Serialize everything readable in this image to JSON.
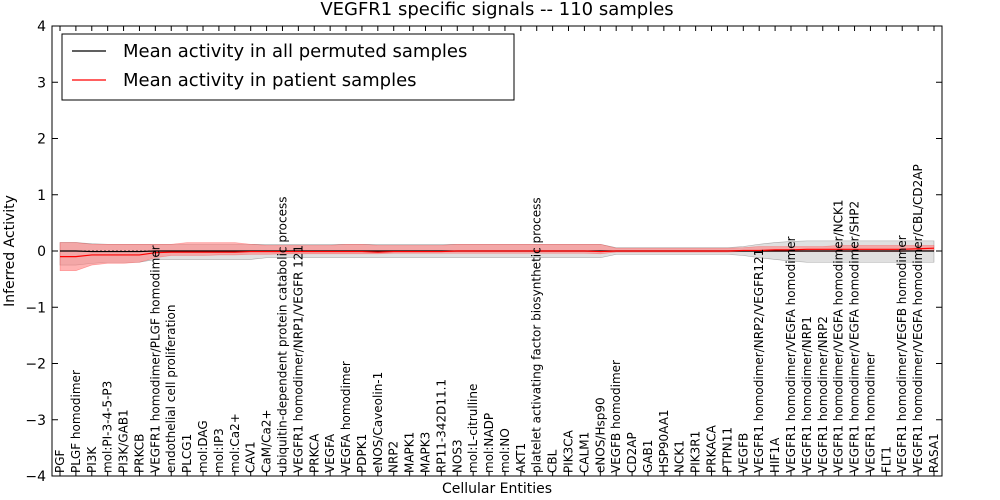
{
  "chart_data": {
    "type": "line",
    "title": "VEGFR1 specific signals -- 110 samples",
    "xlabel": "Cellular Entities",
    "ylabel": "Inferred Activity",
    "ylim": [
      -4,
      4
    ],
    "yticks": [
      "4",
      "3",
      "2",
      "1",
      "0",
      "−1",
      "−2",
      "−3",
      "−4"
    ],
    "legend_position": "top-left",
    "categories": [
      "PGF",
      "PLGF homodimer",
      "PI3K",
      "mol:PI-3-4-5-P3",
      "PI3K/GAB1",
      "PRKCB",
      "VEGFR1 homodimer/PLGF homodimer",
      "endothelial cell proliferation",
      "PLCG1",
      "mol:DAG",
      "mol:IP3",
      "mol:Ca2+",
      "CAV1",
      "CaM/Ca2+",
      "ubiquitin-dependent protein catabolic process",
      "VEGFR1 homodimer/NRP1/VEGFR 121",
      "PRKCA",
      "VEGFA",
      "VEGFA homodimer",
      "PDPK1",
      "eNOS/Caveolin-1",
      "NRP2",
      "MAPK1",
      "MAPK3",
      "RP11-342D11.1",
      "NOS3",
      "mol:L-citrulline",
      "mol:NADP",
      "mol:NO",
      "AKT1",
      "platelet activating factor biosynthetic process",
      "CBL",
      "PIK3CA",
      "CALM1",
      "eNOS/Hsp90",
      "VEGFB homodimer",
      "CD2AP",
      "GAB1",
      "HSP90AA1",
      "NCK1",
      "PIK3R1",
      "PRKACA",
      "PTPN11",
      "VEGFB",
      "VEGFR1 homodimer/NRP2/VEGFR121",
      "HIF1A",
      "VEGFR1 homodimer/VEGFA homodimer",
      "VEGFR1 homodimer/NRP1",
      "VEGFR1 homodimer/NRP2",
      "VEGFR1 homodimer/VEGFA homodimer/NCK1",
      "VEGFR1 homodimer/VEGFA homodimer/SHP2",
      "VEGFR1 homodimer",
      "FLT1",
      "VEGFR1 homodimer/VEGFB homodimer",
      "VEGFR1 homodimer/VEGFA homodimer/CBL/CD2AP",
      "RASA1"
    ],
    "series": [
      {
        "name": "Mean activity in all permuted samples",
        "color": "#000000",
        "values": [
          0.0,
          0.0,
          -0.01,
          -0.01,
          -0.01,
          -0.01,
          0.0,
          0.0,
          0.0,
          0.0,
          0.0,
          0.0,
          0.0,
          0.0,
          0.0,
          0.0,
          0.0,
          0.0,
          0.0,
          0.0,
          0.0,
          0.0,
          0.0,
          0.0,
          0.0,
          0.0,
          0.0,
          0.0,
          0.0,
          0.0,
          0.0,
          0.0,
          0.0,
          0.0,
          0.0,
          0.0,
          0.0,
          0.0,
          0.0,
          0.0,
          0.0,
          0.0,
          0.0,
          0.0,
          0.0,
          0.0,
          0.0,
          0.0,
          0.0,
          0.0,
          0.0,
          0.0,
          0.0,
          0.0,
          0.0,
          0.0
        ],
        "band_low": [
          -0.25,
          -0.25,
          -0.22,
          -0.2,
          -0.2,
          -0.2,
          -0.15,
          -0.15,
          -0.15,
          -0.15,
          -0.15,
          -0.15,
          -0.15,
          -0.12,
          -0.12,
          -0.12,
          -0.12,
          -0.12,
          -0.12,
          -0.12,
          -0.12,
          -0.12,
          -0.12,
          -0.12,
          -0.12,
          -0.12,
          -0.12,
          -0.12,
          -0.12,
          -0.12,
          -0.12,
          -0.12,
          -0.12,
          -0.12,
          -0.12,
          -0.06,
          -0.06,
          -0.06,
          -0.06,
          -0.06,
          -0.06,
          -0.06,
          -0.06,
          -0.08,
          -0.12,
          -0.15,
          -0.18,
          -0.2,
          -0.2,
          -0.2,
          -0.2,
          -0.2,
          -0.2,
          -0.2,
          -0.2,
          -0.2
        ],
        "band_high": [
          0.15,
          0.15,
          0.13,
          0.12,
          0.12,
          0.12,
          0.12,
          0.12,
          0.12,
          0.12,
          0.12,
          0.12,
          0.12,
          0.12,
          0.12,
          0.12,
          0.12,
          0.12,
          0.12,
          0.12,
          0.12,
          0.12,
          0.12,
          0.12,
          0.12,
          0.12,
          0.12,
          0.12,
          0.12,
          0.12,
          0.12,
          0.12,
          0.12,
          0.12,
          0.12,
          0.06,
          0.06,
          0.06,
          0.06,
          0.06,
          0.06,
          0.06,
          0.06,
          0.08,
          0.12,
          0.15,
          0.17,
          0.18,
          0.18,
          0.18,
          0.18,
          0.18,
          0.18,
          0.18,
          0.18,
          0.18
        ],
        "band_color": "#bbbbbb"
      },
      {
        "name": "Mean activity in patient samples",
        "color": "#ff0000",
        "values": [
          -0.1,
          -0.1,
          -0.07,
          -0.07,
          -0.07,
          -0.07,
          -0.03,
          -0.02,
          -0.02,
          -0.02,
          -0.02,
          -0.02,
          -0.01,
          -0.01,
          -0.01,
          -0.01,
          -0.01,
          -0.01,
          -0.01,
          -0.01,
          -0.02,
          -0.01,
          -0.01,
          -0.01,
          -0.01,
          0.0,
          0.0,
          0.0,
          0.0,
          0.0,
          0.0,
          0.0,
          0.0,
          0.0,
          -0.01,
          0.0,
          0.0,
          0.0,
          0.0,
          0.0,
          0.0,
          0.0,
          0.0,
          0.01,
          0.01,
          0.02,
          0.02,
          0.03,
          0.03,
          0.03,
          0.03,
          0.03,
          0.03,
          0.03,
          0.04,
          0.05
        ],
        "band_low": [
          -0.35,
          -0.35,
          -0.25,
          -0.22,
          -0.22,
          -0.2,
          -0.12,
          -0.08,
          -0.08,
          -0.08,
          -0.07,
          -0.07,
          -0.06,
          -0.06,
          -0.05,
          -0.05,
          -0.05,
          -0.05,
          -0.05,
          -0.05,
          -0.05,
          -0.04,
          -0.04,
          -0.04,
          -0.04,
          -0.04,
          -0.04,
          -0.04,
          -0.04,
          -0.04,
          -0.04,
          -0.04,
          -0.04,
          -0.04,
          -0.05,
          -0.02,
          -0.02,
          -0.02,
          -0.02,
          -0.02,
          -0.02,
          -0.02,
          -0.02,
          -0.01,
          -0.01,
          -0.01,
          -0.01,
          -0.01,
          -0.01,
          -0.01,
          -0.01,
          -0.01,
          -0.01,
          -0.01,
          0.0,
          0.0
        ],
        "band_high": [
          0.15,
          0.15,
          0.12,
          0.12,
          0.12,
          0.12,
          0.12,
          0.12,
          0.15,
          0.15,
          0.15,
          0.15,
          0.12,
          0.1,
          0.1,
          0.1,
          0.1,
          0.1,
          0.12,
          0.12,
          0.1,
          0.1,
          0.1,
          0.1,
          0.1,
          0.12,
          0.12,
          0.12,
          0.12,
          0.12,
          0.12,
          0.12,
          0.12,
          0.12,
          0.12,
          0.05,
          0.05,
          0.05,
          0.05,
          0.05,
          0.05,
          0.05,
          0.05,
          0.06,
          0.08,
          0.08,
          0.08,
          0.08,
          0.08,
          0.1,
          0.1,
          0.1,
          0.1,
          0.1,
          0.1,
          0.1
        ],
        "band_color": "#ff8080"
      }
    ],
    "zero_line": true
  }
}
